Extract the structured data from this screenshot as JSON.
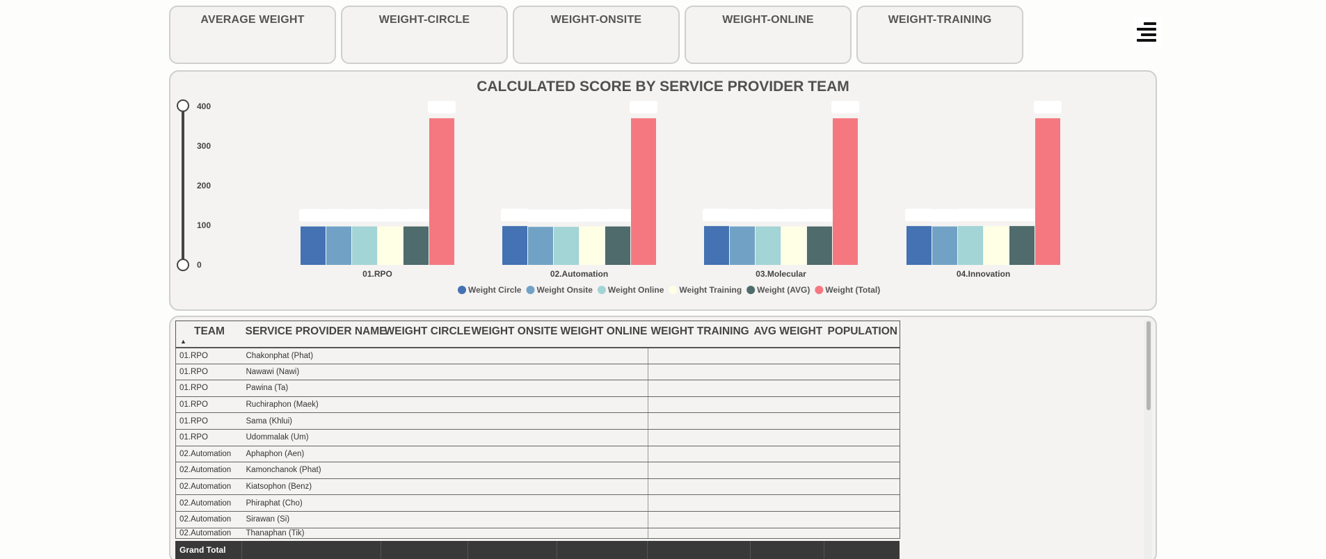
{
  "cards": [
    "AVERAGE WEIGHT",
    "WEIGHT-CIRCLE",
    "WEIGHT-ONSITE",
    "WEIGHT-ONLINE",
    "WEIGHT-TRAINING"
  ],
  "menu": {
    "icon": "hamburger-menu-icon"
  },
  "chart_data": {
    "type": "bar",
    "title": "CALCULATED SCORE BY SERVICE PROVIDER TEAM",
    "categories": [
      "01.RPO",
      "02.Automation",
      "03.Molecular",
      "04.Innovation"
    ],
    "ylim": [
      0,
      400
    ],
    "yticks": [
      "400",
      "300",
      "200",
      "100",
      "0"
    ],
    "legend_position": "bottom-center",
    "series": [
      {
        "name": "Weight Circle",
        "color": "#4472b2",
        "values": [
          97,
          98,
          98,
          98
        ]
      },
      {
        "name": "Weight Onsite",
        "color": "#71a2c6",
        "values": [
          97,
          96,
          97,
          97
        ]
      },
      {
        "name": "Weight Online",
        "color": "#a3d4d6",
        "values": [
          97,
          96,
          97,
          98
        ]
      },
      {
        "name": "Weight Training",
        "color": "#ffffe6",
        "values": [
          97,
          97,
          97,
          98
        ]
      },
      {
        "name": "Weight (AVG)",
        "color": "#4f6b6c",
        "values": [
          97,
          97,
          97,
          98
        ]
      },
      {
        "name": "Weight (Total)",
        "color": "#f57880",
        "values": [
          370,
          370,
          370,
          370
        ]
      }
    ]
  },
  "table": {
    "columns": [
      "TEAM",
      "SERVICE PROVIDER NAME",
      "WEIGHT CIRCLE",
      "WEIGHT ONSITE",
      "WEIGHT ONLINE",
      "WEIGHT TRAINING",
      "AVG WEIGHT",
      "POPULATION"
    ],
    "rows": [
      [
        "01.RPO",
        "Chakonphat (Phat)"
      ],
      [
        "01.RPO",
        "Nawawi (Nawi)"
      ],
      [
        "01.RPO",
        "Pawina (Ta)"
      ],
      [
        "01.RPO",
        "Ruchiraphon (Maek)"
      ],
      [
        "01.RPO",
        "Sama (Khlui)"
      ],
      [
        "01.RPO",
        "Udommalak (Um)"
      ],
      [
        "02.Automation",
        "Aphaphon (Aen)"
      ],
      [
        "02.Automation",
        "Kamonchanok (Phat)"
      ],
      [
        "02.Automation",
        "Kiatsophon (Benz)"
      ],
      [
        "02.Automation",
        "Phiraphat (Cho)"
      ],
      [
        "02.Automation",
        "Sirawan (Si)"
      ],
      [
        "02.Automation",
        "Thanaphan (Tik)"
      ]
    ],
    "grand_total": "Grand Total"
  }
}
